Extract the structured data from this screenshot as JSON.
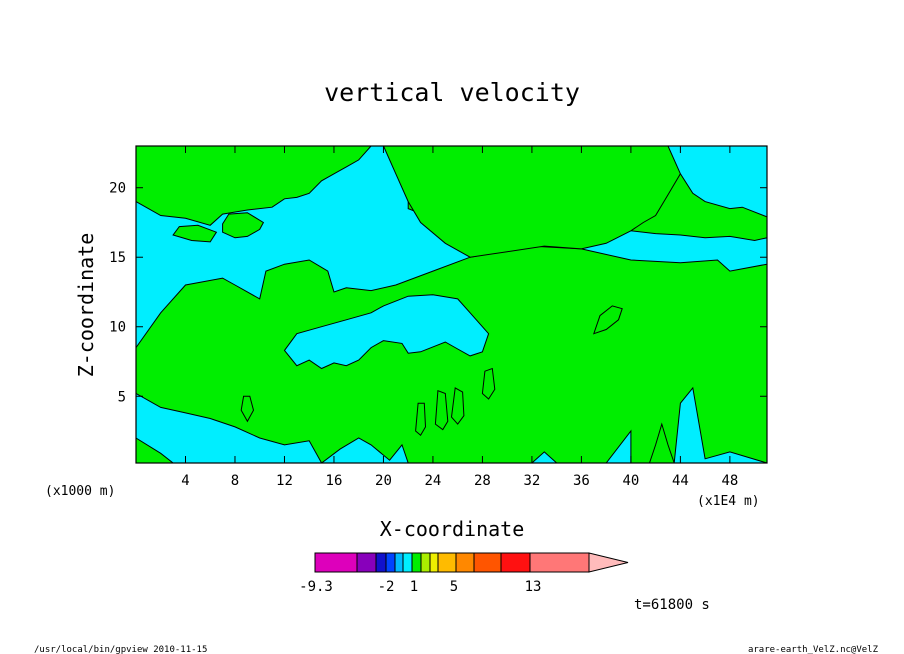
{
  "chart_data": {
    "type": "heatmap",
    "title": "vertical velocity",
    "xlabel": "X-coordinate",
    "ylabel": "Z-coordinate",
    "x_unit_left": "(x1000 m)",
    "x_unit_right": "(x1E4 m)",
    "xlim": [
      0,
      51
    ],
    "ylim": [
      0.2,
      23
    ],
    "x_ticks": [
      4,
      8,
      12,
      16,
      20,
      24,
      28,
      32,
      36,
      40,
      44,
      48
    ],
    "y_ticks": [
      5,
      10,
      15,
      20
    ],
    "background_color": "#00eeff",
    "regions": [
      {
        "name": "left-band",
        "color": "#00ee00",
        "points": [
          [
            0,
            0.2
          ],
          [
            0,
            8.5
          ],
          [
            2,
            11
          ],
          [
            4,
            13
          ],
          [
            7,
            13.5
          ],
          [
            8,
            13
          ],
          [
            10,
            12
          ],
          [
            10.5,
            14
          ],
          [
            12,
            14.5
          ],
          [
            14,
            14.8
          ],
          [
            15.5,
            14
          ],
          [
            16,
            12.5
          ],
          [
            17,
            12.8
          ],
          [
            19,
            12.6
          ],
          [
            21,
            13
          ],
          [
            24,
            14
          ],
          [
            27,
            15
          ],
          [
            32,
            15.8
          ],
          [
            36,
            15.6
          ],
          [
            40,
            14.8
          ],
          [
            44,
            14.6
          ],
          [
            47,
            14.8
          ],
          [
            48,
            14
          ],
          [
            51,
            14.5
          ],
          [
            51,
            0.2
          ],
          [
            48,
            1
          ],
          [
            46,
            0.5
          ],
          [
            45,
            5.6
          ],
          [
            44,
            4.5
          ],
          [
            43.5,
            0.2
          ],
          [
            40,
            0.2
          ],
          [
            40,
            2.5
          ],
          [
            38,
            0.2
          ],
          [
            34,
            0.2
          ],
          [
            33,
            1
          ],
          [
            32,
            0.2
          ],
          [
            22,
            0.2
          ],
          [
            21.5,
            1.5
          ],
          [
            20.5,
            0.4
          ],
          [
            19,
            1.5
          ],
          [
            18,
            2
          ],
          [
            16.5,
            1.2
          ],
          [
            15,
            0.2
          ]
        ]
      },
      {
        "name": "cyan-lobe-1",
        "color": "#00eeff",
        "points": [
          [
            0,
            2
          ],
          [
            0,
            5.2
          ],
          [
            2,
            4.2
          ],
          [
            4,
            3.8
          ],
          [
            6,
            3.4
          ],
          [
            8,
            2.8
          ],
          [
            10,
            2
          ],
          [
            12,
            1.5
          ],
          [
            14,
            1.8
          ],
          [
            15,
            0.2
          ],
          [
            3,
            0.2
          ],
          [
            2,
            0.9
          ]
        ]
      },
      {
        "name": "cyan-lobe-2",
        "color": "#00eeff",
        "points": [
          [
            12,
            8.3
          ],
          [
            13,
            7.2
          ],
          [
            14,
            7.6
          ],
          [
            15,
            7
          ],
          [
            16,
            7.4
          ],
          [
            17,
            7.2
          ],
          [
            18,
            7.6
          ],
          [
            19,
            8.5
          ],
          [
            20,
            9
          ],
          [
            21.5,
            8.8
          ],
          [
            22,
            8.1
          ],
          [
            23,
            8.2
          ],
          [
            25,
            8.9
          ],
          [
            26,
            8.4
          ],
          [
            27,
            7.9
          ],
          [
            28,
            8.2
          ],
          [
            28.5,
            9.5
          ],
          [
            27,
            11
          ],
          [
            26,
            12
          ],
          [
            24,
            12.3
          ],
          [
            22,
            12.2
          ],
          [
            20,
            11.5
          ],
          [
            19,
            11
          ],
          [
            17,
            10.5
          ],
          [
            15,
            10
          ],
          [
            13,
            9.5
          ]
        ]
      },
      {
        "name": "green-top",
        "color": "#00ee00",
        "points": [
          [
            0,
            23
          ],
          [
            0,
            19
          ],
          [
            2,
            18
          ],
          [
            4,
            17.8
          ],
          [
            6,
            17.3
          ],
          [
            7,
            18.1
          ],
          [
            9,
            18.4
          ],
          [
            11,
            18.6
          ],
          [
            12,
            19.2
          ],
          [
            13,
            19.3
          ],
          [
            14,
            19.6
          ],
          [
            15,
            20.5
          ],
          [
            16,
            21
          ],
          [
            17,
            21.5
          ],
          [
            18,
            22
          ],
          [
            19,
            23
          ]
        ]
      },
      {
        "name": "green-top-middle",
        "color": "#00ee00",
        "points": [
          [
            22,
            23
          ],
          [
            22,
            18.5
          ],
          [
            24,
            17.8
          ],
          [
            25,
            17.8
          ],
          [
            26,
            18.7
          ],
          [
            27,
            18.2
          ],
          [
            28,
            18.9
          ],
          [
            29,
            19.5
          ],
          [
            30,
            18.2
          ],
          [
            31,
            18.9
          ],
          [
            32,
            19.2
          ],
          [
            33,
            18.8
          ],
          [
            34,
            19
          ],
          [
            35,
            18.4
          ],
          [
            36,
            18.6
          ],
          [
            37,
            18.4
          ],
          [
            38,
            18.1
          ],
          [
            39,
            17.5
          ],
          [
            40,
            16.9
          ],
          [
            42,
            16.7
          ],
          [
            44,
            16.6
          ],
          [
            46,
            16.4
          ],
          [
            48,
            16.5
          ],
          [
            50,
            16.2
          ],
          [
            51,
            16.4
          ],
          [
            51,
            23
          ]
        ]
      },
      {
        "name": "green-ridge",
        "color": "#00ee00",
        "points": [
          [
            20,
            23
          ],
          [
            21,
            21
          ],
          [
            22,
            19
          ],
          [
            23,
            17.5
          ],
          [
            25,
            16
          ],
          [
            27,
            15
          ],
          [
            30,
            15.4
          ],
          [
            33,
            15.8
          ],
          [
            36,
            15.6
          ],
          [
            38,
            16
          ],
          [
            40,
            16.9
          ],
          [
            41,
            17.5
          ],
          [
            42,
            18
          ],
          [
            43,
            19.5
          ],
          [
            44,
            21
          ],
          [
            45,
            23
          ]
        ]
      },
      {
        "name": "cyan-right-top",
        "color": "#00eeff",
        "points": [
          [
            43,
            23
          ],
          [
            44,
            21
          ],
          [
            45,
            19.6
          ],
          [
            46,
            19
          ],
          [
            48,
            18.5
          ],
          [
            49,
            18.6
          ],
          [
            51,
            17.9
          ],
          [
            51,
            23
          ]
        ]
      },
      {
        "name": "green-blob-1",
        "color": "#00ee00",
        "points": [
          [
            7,
            16.8
          ],
          [
            8,
            16.4
          ],
          [
            9,
            16.5
          ],
          [
            10,
            17
          ],
          [
            10.3,
            17.5
          ],
          [
            9,
            18.2
          ],
          [
            7.5,
            18.1
          ],
          [
            7,
            17.4
          ]
        ]
      },
      {
        "name": "green-blob-2",
        "color": "#00ee00",
        "points": [
          [
            3,
            16.6
          ],
          [
            4.5,
            16.2
          ],
          [
            6,
            16.1
          ],
          [
            6.5,
            16.8
          ],
          [
            5,
            17.3
          ],
          [
            3.5,
            17.2
          ]
        ]
      },
      {
        "name": "green-blob-3",
        "color": "#00ee00",
        "points": [
          [
            37,
            9.5
          ],
          [
            38,
            9.8
          ],
          [
            39,
            10.5
          ],
          [
            39.3,
            11.3
          ],
          [
            38.5,
            11.5
          ],
          [
            37.5,
            10.8
          ]
        ]
      },
      {
        "name": "green-blob-4",
        "color": "#00ee00",
        "points": [
          [
            8.5,
            4
          ],
          [
            9,
            3.2
          ],
          [
            9.5,
            4
          ],
          [
            9.2,
            5
          ],
          [
            8.7,
            5
          ]
        ]
      },
      {
        "name": "green-blob-5",
        "color": "#00ee00",
        "points": [
          [
            28,
            5.2
          ],
          [
            28.5,
            4.8
          ],
          [
            29,
            5.5
          ],
          [
            28.8,
            7
          ],
          [
            28.2,
            6.8
          ]
        ]
      },
      {
        "name": "green-blob-6",
        "color": "#00ee00",
        "points": [
          [
            25.5,
            3.5
          ],
          [
            26,
            3
          ],
          [
            26.5,
            3.6
          ],
          [
            26.4,
            5.3
          ],
          [
            25.8,
            5.6
          ]
        ]
      },
      {
        "name": "green-blob-7",
        "color": "#00ee00",
        "points": [
          [
            24.2,
            3
          ],
          [
            24.8,
            2.6
          ],
          [
            25.2,
            3.2
          ],
          [
            25,
            5.2
          ],
          [
            24.4,
            5.4
          ]
        ]
      },
      {
        "name": "green-blob-8",
        "color": "#00ee00",
        "points": [
          [
            22.6,
            2.5
          ],
          [
            23,
            2.2
          ],
          [
            23.4,
            2.8
          ],
          [
            23.3,
            4.5
          ],
          [
            22.8,
            4.5
          ]
        ]
      },
      {
        "name": "green-blob-9",
        "color": "#00ee00",
        "points": [
          [
            41.5,
            0.2
          ],
          [
            42,
            1.5
          ],
          [
            42.5,
            3
          ],
          [
            43,
            1.5
          ],
          [
            43.5,
            0.2
          ]
        ]
      }
    ],
    "colorbar": {
      "segments": [
        "#dd00bb",
        "#8800bb",
        "#1111cc",
        "#0044ff",
        "#00bbff",
        "#00eeff",
        "#00ee00",
        "#aaee00",
        "#eeee00",
        "#ffbb00",
        "#ff8800",
        "#ff5500",
        "#ff1111",
        "#ff7777",
        "#ffbbbb"
      ],
      "tick_labels": [
        "-9.3",
        "-2",
        "1",
        "5",
        "13"
      ]
    },
    "time_label": "t=61800 s"
  },
  "footer": {
    "left": "/usr/local/bin/gpview  2010-11-15",
    "right": "arare-earth_VelZ.nc@VelZ"
  }
}
